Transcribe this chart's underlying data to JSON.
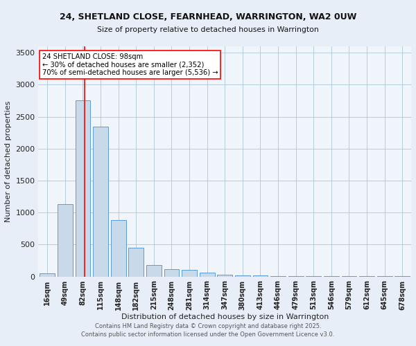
{
  "title1": "24, SHETLAND CLOSE, FEARNHEAD, WARRINGTON, WA2 0UW",
  "title2": "Size of property relative to detached houses in Warrington",
  "xlabel": "Distribution of detached houses by size in Warrington",
  "ylabel": "Number of detached properties",
  "categories": [
    "16sqm",
    "49sqm",
    "82sqm",
    "115sqm",
    "148sqm",
    "182sqm",
    "215sqm",
    "248sqm",
    "281sqm",
    "314sqm",
    "347sqm",
    "380sqm",
    "413sqm",
    "446sqm",
    "479sqm",
    "513sqm",
    "546sqm",
    "579sqm",
    "612sqm",
    "645sqm",
    "678sqm"
  ],
  "values": [
    50,
    1130,
    2760,
    2340,
    880,
    450,
    175,
    110,
    100,
    55,
    30,
    20,
    15,
    8,
    5,
    4,
    3,
    2,
    1,
    1,
    1
  ],
  "bar_color": "#c8daea",
  "bar_edge_color": "#5b9bd5",
  "red_line_index": 2,
  "annotation_title": "24 SHETLAND CLOSE: 98sqm",
  "annotation_line1": "← 30% of detached houses are smaller (2,352)",
  "annotation_line2": "70% of semi-detached houses are larger (5,536) →",
  "footer1": "Contains HM Land Registry data © Crown copyright and database right 2025.",
  "footer2": "Contains public sector information licensed under the Open Government Licence v3.0.",
  "bg_color": "#e8eef8",
  "plot_bg_color": "#f0f5fc",
  "ylim": [
    0,
    3600
  ],
  "yticks": [
    0,
    500,
    1000,
    1500,
    2000,
    2500,
    3000,
    3500
  ]
}
